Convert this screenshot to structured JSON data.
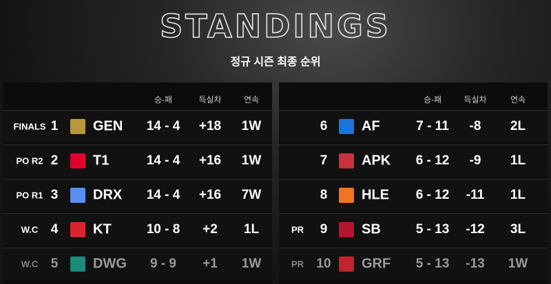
{
  "header": {
    "title": "STANDINGS",
    "subtitle": "정규 시즌 최종 순위"
  },
  "left": {
    "columns": [
      "승-패",
      "득실차",
      "연속"
    ],
    "rows": [
      {
        "badge": "FINALS",
        "rank": 1,
        "team": "GEN",
        "record": "14 - 4",
        "diff": "+18",
        "streak": "1W"
      },
      {
        "badge": "PO R2",
        "rank": 2,
        "team": "T1",
        "record": "14 - 4",
        "diff": "+16",
        "streak": "1W"
      },
      {
        "badge": "PO R1",
        "rank": 3,
        "team": "DRX",
        "record": "14 - 4",
        "diff": "+16",
        "streak": "7W"
      },
      {
        "badge": "W.C",
        "rank": 4,
        "team": "KT",
        "record": "10 - 8",
        "diff": "+2",
        "streak": "1L"
      },
      {
        "badge": "W.C",
        "rank": 5,
        "team": "DWG",
        "record": "9 - 9",
        "diff": "+1",
        "streak": "1W"
      }
    ]
  },
  "right": {
    "columns": [
      "승-패",
      "득실차",
      "연속"
    ],
    "rows": [
      {
        "rank": 6,
        "team": "AF",
        "record": "7 - 11",
        "diff": "-8",
        "streak": "2L"
      },
      {
        "rank": 7,
        "team": "APK",
        "record": "6 - 12",
        "diff": "-9",
        "streak": "1L"
      },
      {
        "rank": 8,
        "team": "HLE",
        "record": "6 - 12",
        "diff": "-11",
        "streak": "1L"
      },
      {
        "badge": "PR",
        "rank": 9,
        "team": "SB",
        "record": "5 - 13",
        "diff": "-12",
        "streak": "3L"
      },
      {
        "badge": "PR",
        "rank": 10,
        "team": "GRF",
        "record": "5 - 13",
        "diff": "-13",
        "streak": "1W"
      }
    ]
  }
}
